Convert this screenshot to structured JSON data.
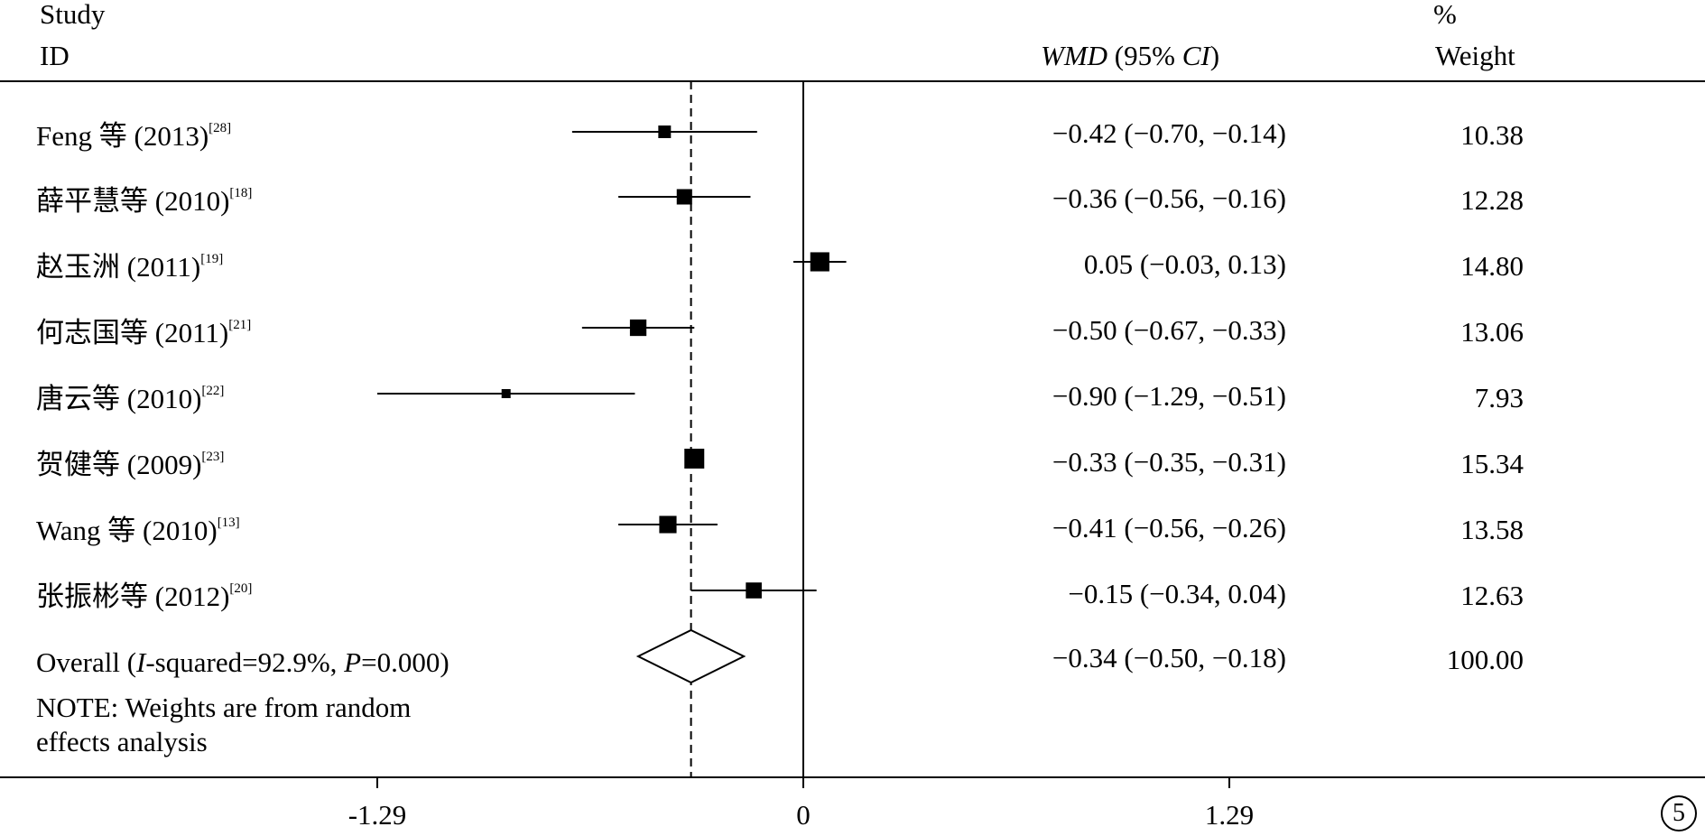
{
  "header": {
    "study": "Study",
    "id": "ID",
    "wmd_label": "WMD",
    "ci_open": " (95% ",
    "ci_label": "CI",
    "ci_close": ")",
    "percent": "%",
    "weight": "Weight"
  },
  "chart_data": {
    "type": "forest",
    "reference_line": 0,
    "pooled_line": -0.34,
    "xlim": [
      -1.29,
      1.29
    ],
    "xticks": [
      "-1.29",
      "0",
      "1.29"
    ],
    "tick_values": [
      -1.29,
      0,
      1.29
    ],
    "studies": [
      {
        "name": "Feng 等 (2013)",
        "ref": "[28]",
        "wmd": -0.42,
        "lower": -0.7,
        "upper": -0.14,
        "ci_text": "−0.42 (−0.70, −0.14)",
        "weight": 10.38,
        "weight_text": "10.38"
      },
      {
        "name": "薛平慧等 (2010)",
        "ref": "[18]",
        "wmd": -0.36,
        "lower": -0.56,
        "upper": -0.16,
        "ci_text": "−0.36 (−0.56, −0.16)",
        "weight": 12.28,
        "weight_text": "12.28"
      },
      {
        "name": "赵玉洲 (2011)",
        "ref": "[19]",
        "wmd": 0.05,
        "lower": -0.03,
        "upper": 0.13,
        "ci_text": "0.05 (−0.03, 0.13)",
        "weight": 14.8,
        "weight_text": "14.80"
      },
      {
        "name": "何志国等 (2011)",
        "ref": "[21]",
        "wmd": -0.5,
        "lower": -0.67,
        "upper": -0.33,
        "ci_text": "−0.50 (−0.67, −0.33)",
        "weight": 13.06,
        "weight_text": "13.06"
      },
      {
        "name": "唐云等 (2010)",
        "ref": "[22]",
        "wmd": -0.9,
        "lower": -1.29,
        "upper": -0.51,
        "ci_text": "−0.90 (−1.29, −0.51)",
        "weight": 7.93,
        "weight_text": "7.93"
      },
      {
        "name": "贺健等 (2009)",
        "ref": "[23]",
        "wmd": -0.33,
        "lower": -0.35,
        "upper": -0.31,
        "ci_text": "−0.33 (−0.35, −0.31)",
        "weight": 15.34,
        "weight_text": "15.34"
      },
      {
        "name": "Wang 等 (2010)",
        "ref": "[13]",
        "wmd": -0.41,
        "lower": -0.56,
        "upper": -0.26,
        "ci_text": "−0.41 (−0.56, −0.26)",
        "weight": 13.58,
        "weight_text": "13.58"
      },
      {
        "name": "张振彬等 (2012)",
        "ref": "[20]",
        "wmd": -0.15,
        "lower": -0.34,
        "upper": 0.04,
        "ci_text": "−0.15 (−0.34, 0.04)",
        "weight": 12.63,
        "weight_text": "12.63"
      }
    ],
    "overall": {
      "label_start": "Overall (",
      "i_label": "I",
      "i_rest": "-squared=92.9%, ",
      "p_label": "P",
      "p_rest": "=0.000)",
      "wmd": -0.34,
      "lower": -0.5,
      "upper": -0.18,
      "ci_text": "−0.34 (−0.50, −0.18)",
      "weight_text": "100.00"
    },
    "note_line1": "NOTE: Weights are from random",
    "note_line2": "effects analysis"
  },
  "page_number": "5"
}
